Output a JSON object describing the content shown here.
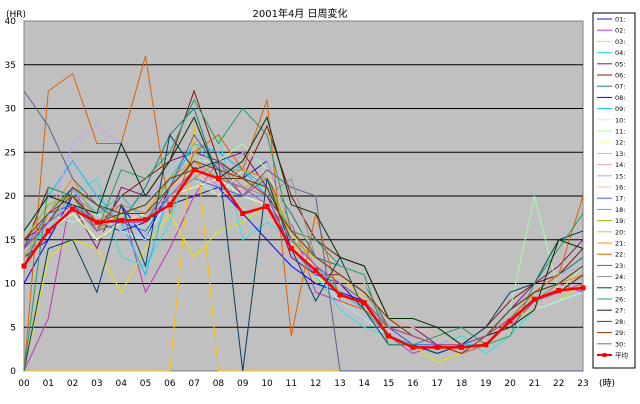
{
  "chart_data": {
    "type": "line",
    "title": "2001年4月  日周変化",
    "ylabel": "(HR)",
    "xlabel": "(時)",
    "ylim": [
      0,
      40
    ],
    "yticks": [
      "0",
      "5",
      "10",
      "15",
      "20",
      "25",
      "30",
      "35",
      "40"
    ],
    "categories": [
      "00",
      "01",
      "02",
      "03",
      "04",
      "05",
      "06",
      "07",
      "08",
      "09",
      "10",
      "11",
      "12",
      "13",
      "14",
      "15",
      "16",
      "17",
      "18",
      "19",
      "20",
      "21",
      "22",
      "23"
    ],
    "background": "#c0c0c0",
    "series": [
      {
        "name": "01:",
        "color": "#1a1aa0",
        "values": [
          13,
          15,
          20,
          17,
          16,
          17,
          19,
          20,
          21,
          22,
          24,
          16,
          12,
          10,
          7,
          4,
          3,
          2,
          3,
          4,
          7,
          9,
          10,
          11
        ]
      },
      {
        "name": "02:",
        "color": "#c030c0",
        "values": [
          0,
          6,
          21,
          16,
          19,
          9,
          14,
          20,
          24,
          20,
          22,
          17,
          9,
          8,
          6,
          4,
          2,
          3,
          2,
          3,
          5,
          8,
          10,
          9
        ]
      },
      {
        "name": "03:",
        "color": "#e8e800",
        "values": [
          0,
          13,
          15,
          14,
          9,
          14,
          18,
          13,
          16,
          17,
          19,
          15,
          10,
          11,
          8,
          5,
          3,
          1,
          2,
          3,
          6,
          7,
          8,
          10
        ]
      },
      {
        "name": "04:",
        "color": "#30e0e0",
        "values": [
          14,
          16,
          20,
          22,
          13,
          12,
          17,
          25,
          27,
          15,
          17,
          15,
          11,
          7,
          5,
          4,
          3,
          3,
          4,
          2,
          4,
          7,
          9,
          10
        ]
      },
      {
        "name": "05:",
        "color": "#801080",
        "values": [
          15,
          17,
          19,
          14,
          21,
          20,
          24,
          25,
          24,
          25,
          21,
          13,
          11,
          11,
          9,
          6,
          5,
          3,
          2,
          4,
          7,
          10,
          12,
          15
        ]
      },
      {
        "name": "06:",
        "color": "#801010",
        "values": [
          14,
          21,
          20,
          16,
          20,
          22,
          24,
          32,
          24,
          22,
          28,
          20,
          15,
          13,
          12,
          6,
          5,
          4,
          3,
          5,
          8,
          10,
          11,
          14
        ]
      },
      {
        "name": "07:",
        "color": "#108080",
        "values": [
          12,
          18,
          21,
          19,
          17,
          21,
          27,
          30,
          22,
          23,
          22,
          18,
          13,
          12,
          10,
          5,
          3,
          2,
          3,
          4,
          7,
          9,
          11,
          13
        ]
      },
      {
        "name": "08:",
        "color": "#0000ff",
        "values": [
          10,
          15,
          20,
          17,
          19,
          15,
          21,
          24,
          21,
          18,
          15,
          12,
          10,
          9,
          8,
          4,
          3,
          2,
          3,
          4,
          6,
          8,
          9,
          11
        ]
      },
      {
        "name": "09:",
        "color": "#00c0ff",
        "values": [
          16,
          20,
          24,
          20,
          17,
          11,
          21,
          26,
          25,
          23,
          20,
          15,
          12,
          9,
          7,
          5,
          4,
          3,
          3,
          3,
          6,
          9,
          10,
          12
        ]
      },
      {
        "name": "10:",
        "color": "#a0ffff",
        "values": [
          14,
          18,
          17,
          18,
          16,
          15,
          20,
          22,
          20,
          23,
          21,
          14,
          11,
          8,
          6,
          4,
          3,
          3,
          2,
          3,
          5,
          7,
          8,
          9
        ]
      },
      {
        "name": "11:",
        "color": "#a0ffa0",
        "values": [
          13,
          17,
          19,
          15,
          18,
          16,
          22,
          24,
          24,
          26,
          23,
          16,
          11,
          9,
          7,
          5,
          4,
          3,
          3,
          4,
          7,
          20,
          9,
          12
        ]
      },
      {
        "name": "12:",
        "color": "#ffffa0",
        "values": [
          12,
          16,
          18,
          15,
          17,
          18,
          20,
          21,
          22,
          20,
          19,
          14,
          12,
          10,
          8,
          5,
          4,
          3,
          2,
          3,
          5,
          7,
          9,
          10
        ]
      },
      {
        "name": "13:",
        "color": "#a0c0ff",
        "values": [
          15,
          19,
          21,
          17,
          18,
          19,
          23,
          25,
          22,
          21,
          22,
          15,
          13,
          11,
          9,
          6,
          5,
          4,
          3,
          4,
          6,
          8,
          10,
          11
        ]
      },
      {
        "name": "14:",
        "color": "#ffa0c0",
        "values": [
          14,
          18,
          20,
          16,
          19,
          17,
          21,
          23,
          21,
          22,
          20,
          15,
          11,
          10,
          8,
          5,
          4,
          3,
          2,
          3,
          5,
          7,
          9,
          10
        ]
      },
      {
        "name": "15:",
        "color": "#c0a0ff",
        "values": [
          13,
          17,
          26,
          28,
          26,
          20,
          22,
          24,
          21,
          25,
          24,
          16,
          13,
          11,
          9,
          6,
          4,
          3,
          2,
          4,
          7,
          9,
          11,
          12
        ]
      },
      {
        "name": "16:",
        "color": "#ffc0a0",
        "values": [
          12,
          16,
          19,
          17,
          18,
          18,
          21,
          23,
          20,
          21,
          23,
          17,
          14,
          12,
          10,
          6,
          5,
          4,
          3,
          4,
          6,
          8,
          10,
          12
        ]
      },
      {
        "name": "17:",
        "color": "#3060ff",
        "values": [
          14,
          18,
          19,
          17,
          17,
          16,
          20,
          22,
          21,
          20,
          20,
          14,
          11,
          10,
          8,
          5,
          3,
          3,
          2,
          3,
          6,
          8,
          9,
          11
        ]
      },
      {
        "name": "18:",
        "color": "#30c0c0",
        "values": [
          13,
          17,
          21,
          18,
          20,
          17,
          22,
          26,
          23,
          23,
          21,
          16,
          12,
          9,
          7,
          4,
          3,
          2,
          3,
          4,
          7,
          9,
          10,
          12
        ]
      },
      {
        "name": "19:",
        "color": "#90c000",
        "values": [
          15,
          19,
          20,
          16,
          18,
          19,
          22,
          24,
          22,
          21,
          22,
          15,
          13,
          11,
          9,
          6,
          4,
          3,
          3,
          4,
          6,
          8,
          10,
          11
        ]
      },
      {
        "name": "20:",
        "color": "#ffc000",
        "values": [
          0,
          0,
          0,
          0,
          0,
          0,
          0,
          28,
          0,
          0,
          0,
          0,
          0,
          0,
          0,
          0,
          0,
          0,
          0,
          0,
          0,
          0,
          0,
          0
        ]
      },
      {
        "name": "21:",
        "color": "#ff9000",
        "values": [
          13,
          18,
          22,
          17,
          19,
          18,
          22,
          24,
          22,
          23,
          22,
          16,
          12,
          10,
          8,
          5,
          4,
          3,
          3,
          4,
          6,
          8,
          10,
          11
        ]
      },
      {
        "name": "22:",
        "color": "#e06000",
        "values": [
          0,
          32,
          34,
          26,
          26,
          36,
          18,
          25,
          27,
          23,
          31,
          4,
          18,
          8,
          7,
          5,
          4,
          3,
          2,
          3,
          6,
          9,
          11,
          20
        ]
      },
      {
        "name": "23:",
        "color": "#606090",
        "values": [
          32,
          28,
          22,
          19,
          17,
          17,
          21,
          27,
          23,
          20,
          23,
          21,
          20,
          0,
          0,
          0,
          0,
          0,
          0,
          0,
          0,
          0,
          0,
          0
        ]
      },
      {
        "name": "24:",
        "color": "#909090",
        "values": [
          14,
          17,
          20,
          18,
          19,
          18,
          20,
          22,
          24,
          21,
          20,
          22,
          13,
          11,
          9,
          5,
          4,
          3,
          3,
          4,
          6,
          8,
          10,
          12
        ]
      },
      {
        "name": "25:",
        "color": "#004060",
        "values": [
          0,
          14,
          15,
          9,
          19,
          12,
          27,
          23,
          24,
          0,
          22,
          14,
          8,
          13,
          7,
          3,
          3,
          2,
          3,
          5,
          9,
          10,
          15,
          16
        ]
      },
      {
        "name": "26:",
        "color": "#20a060",
        "values": [
          0,
          21,
          20,
          16,
          23,
          22,
          25,
          31,
          26,
          30,
          27,
          16,
          15,
          12,
          11,
          3,
          3,
          4,
          5,
          3,
          4,
          10,
          14,
          18
        ]
      },
      {
        "name": "27:",
        "color": "#003000",
        "values": [
          16,
          20,
          19,
          18,
          26,
          20,
          24,
          29,
          22,
          24,
          29,
          19,
          18,
          13,
          12,
          6,
          6,
          5,
          3,
          4,
          5,
          7,
          15,
          14
        ]
      },
      {
        "name": "28:",
        "color": "#604000",
        "values": [
          14,
          17,
          21,
          19,
          18,
          19,
          22,
          23,
          22,
          22,
          21,
          15,
          12,
          10,
          8,
          5,
          4,
          3,
          3,
          4,
          7,
          9,
          10,
          12
        ]
      },
      {
        "name": "29:",
        "color": "#903000",
        "values": [
          15,
          18,
          20,
          17,
          18,
          18,
          21,
          24,
          23,
          22,
          20,
          16,
          13,
          11,
          9,
          6,
          4,
          3,
          2,
          4,
          6,
          8,
          9,
          11
        ]
      },
      {
        "name": "30:",
        "color": "#b050b0",
        "values": [
          14,
          17,
          19,
          16,
          17,
          17,
          20,
          23,
          22,
          21,
          19,
          15,
          12,
          10,
          8,
          5,
          4,
          3,
          3,
          4,
          6,
          8,
          9,
          10
        ]
      },
      {
        "name": "平均",
        "color": "#ff0000",
        "values": [
          12,
          16,
          18.5,
          17,
          17.2,
          17.3,
          19,
          23,
          22,
          18,
          18.8,
          14,
          11.5,
          8.7,
          7.8,
          4,
          2.7,
          2.7,
          2.7,
          3,
          5.7,
          8.2,
          9.2,
          9.5
        ]
      }
    ]
  }
}
